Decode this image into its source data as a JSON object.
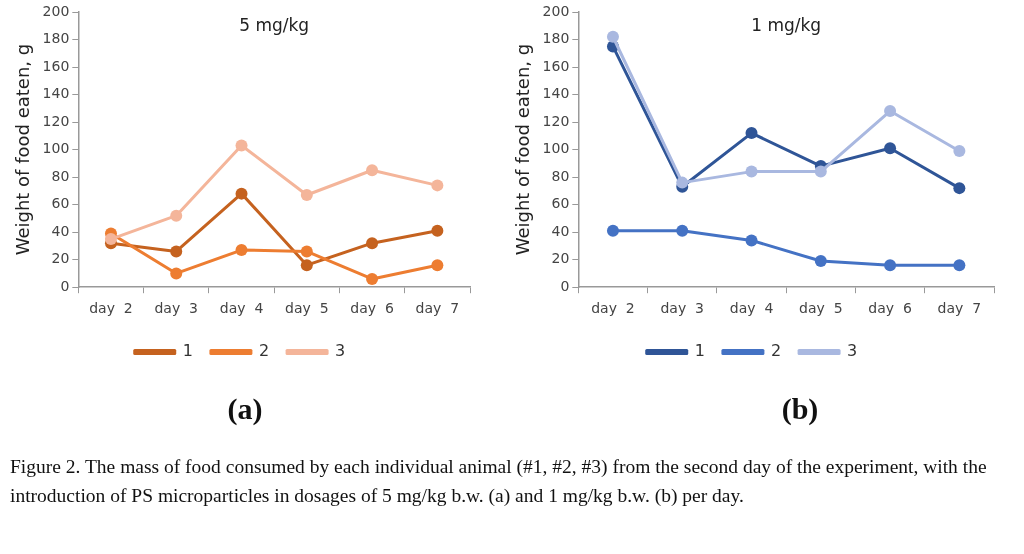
{
  "chart_data": [
    {
      "type": "line",
      "title": "5 mg/kg",
      "ylabel": "Weight of food eaten, g",
      "categories": [
        "day  2",
        "day  3",
        "day  4",
        "day  5",
        "day  6",
        "day  7"
      ],
      "series": [
        {
          "name": "1",
          "color": "#c5621f",
          "values": [
            32,
            26,
            68,
            16,
            32,
            41
          ]
        },
        {
          "name": "2",
          "color": "#ed7d31",
          "values": [
            39,
            10,
            27,
            26,
            6,
            16
          ]
        },
        {
          "name": "3",
          "color": "#f4b59a",
          "values": [
            35,
            52,
            103,
            67,
            85,
            74
          ]
        }
      ],
      "ylim": [
        0,
        200
      ],
      "yticks": [
        0,
        20,
        40,
        60,
        80,
        100,
        120,
        140,
        160,
        180,
        200
      ],
      "grid": false,
      "legend": "bottom",
      "marker": "circle",
      "line_style": "solid",
      "annotations": [
        "(a)"
      ]
    },
    {
      "type": "line",
      "title": "1 mg/kg",
      "ylabel": "Weight of food eaten, g",
      "categories": [
        "day  2",
        "day  3",
        "day  4",
        "day  5",
        "day  6",
        "day  7"
      ],
      "series": [
        {
          "name": "1",
          "color": "#2f5597",
          "values": [
            175,
            73,
            112,
            88,
            101,
            72
          ]
        },
        {
          "name": "2",
          "color": "#4472c4",
          "values": [
            41,
            41,
            34,
            19,
            16,
            16
          ]
        },
        {
          "name": "3",
          "color": "#a9b8e0",
          "values": [
            182,
            76,
            84,
            84,
            128,
            99
          ]
        }
      ],
      "ylim": [
        0,
        200
      ],
      "yticks": [
        0,
        20,
        40,
        60,
        80,
        100,
        120,
        140,
        160,
        180,
        200
      ],
      "grid": false,
      "legend": "bottom",
      "marker": "circle",
      "line_style": "solid",
      "annotations": [
        "(b)",
        "Figure 2. The mass of food consumed by each individual animal (#1, #2, #3) from the second day of the experiment, with the introduction of PS microparticles in dosages of 5 mg/kg b.w. (a) and 1 mg/kg b.w. (b) per day."
      ]
    }
  ]
}
